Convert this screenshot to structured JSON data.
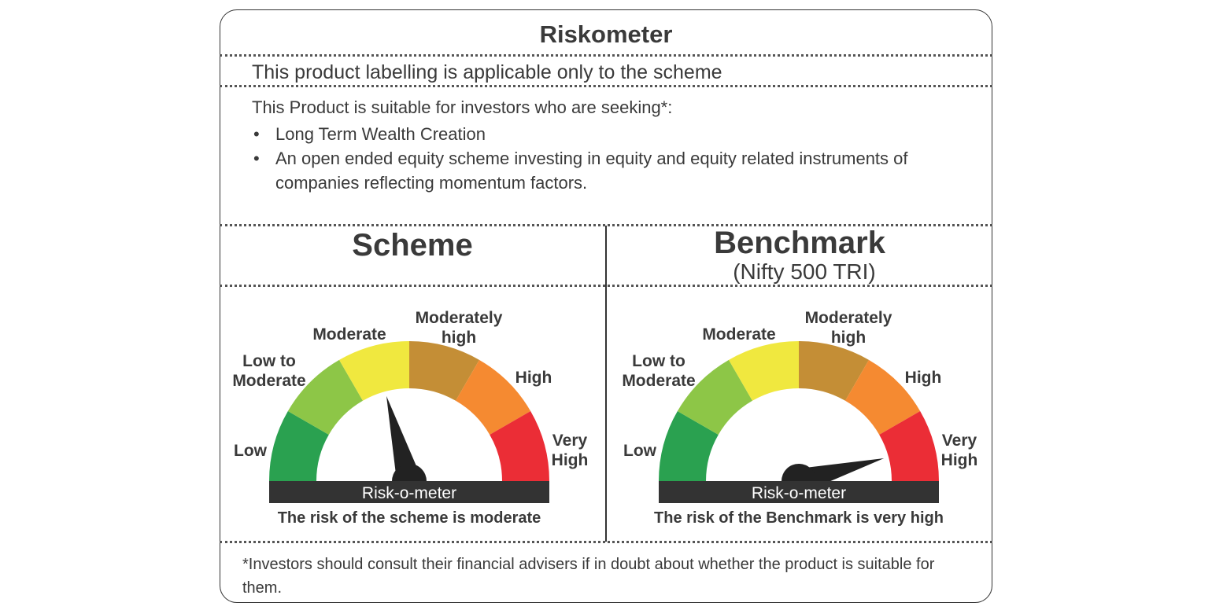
{
  "title": "Riskometer",
  "applicability": "This product labelling is applicable only to the scheme",
  "suitability": {
    "intro": "This Product is suitable for investors who are seeking*:",
    "items": [
      "Long Term Wealth Creation",
      "An open ended equity scheme investing in equity and equity related instruments of companies reflecting momentum factors."
    ]
  },
  "scheme": {
    "heading": "Scheme",
    "risk_level": "Moderate",
    "meter_label": "Risk-o-meter",
    "caption": "The risk of the scheme is moderate"
  },
  "benchmark": {
    "heading": "Benchmark",
    "subheading": "(Nifty 500 TRI)",
    "risk_level": "Very High",
    "meter_label": "Risk-o-meter",
    "caption": "The risk of the Benchmark is very high"
  },
  "risk_levels": [
    {
      "label_lines": [
        "Low"
      ],
      "color": "#2aa150"
    },
    {
      "label_lines": [
        "Low to",
        "Moderate"
      ],
      "color": "#8dc647"
    },
    {
      "label_lines": [
        "Moderate"
      ],
      "color": "#f0e83f"
    },
    {
      "label_lines": [
        "Moderately",
        "high"
      ],
      "color": "#c48e36"
    },
    {
      "label_lines": [
        "High"
      ],
      "color": "#f58a31"
    },
    {
      "label_lines": [
        "Very",
        "High"
      ],
      "color": "#eb2d36"
    }
  ],
  "footnote": "*Investors should consult their financial advisers if in doubt about whether the product is suitable for them.",
  "colors": {
    "text": "#3a3a3a",
    "bar": "#333333",
    "needle": "#222222"
  }
}
